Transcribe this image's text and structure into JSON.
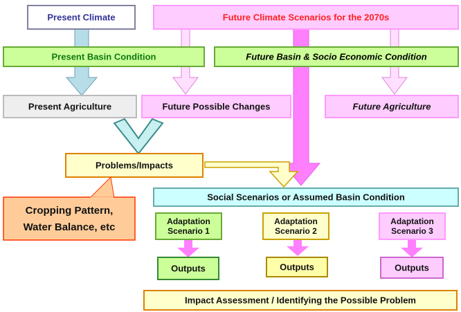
{
  "nodes": [
    {
      "label": "Present Climate"
    },
    {
      "label": "Future Climate Scenarios for the 2070s"
    },
    {
      "label": "Present Basin Condition"
    },
    {
      "label": "Future Basin & Socio Economic Condition"
    },
    {
      "label": "Present Agriculture"
    },
    {
      "label": "Future Possible Changes"
    },
    {
      "label": "Future Agriculture"
    },
    {
      "label": "Problems/Impacts"
    },
    {
      "lines": [
        "Cropping Pattern,",
        "Water Balance, etc"
      ]
    },
    {
      "label": "Social Scenarios or Assumed Basin Condition"
    },
    {
      "lines": [
        "Adaptation",
        "Scenario 1"
      ]
    },
    {
      "lines": [
        "Adaptation",
        "Scenario 2"
      ]
    },
    {
      "lines": [
        "Adaptation",
        "Scenario 3"
      ]
    },
    {
      "label": "Outputs"
    },
    {
      "label": "Outputs"
    },
    {
      "label": "Outputs"
    },
    {
      "label": "Impact Assessment / Identifying the Possible Problem"
    }
  ]
}
